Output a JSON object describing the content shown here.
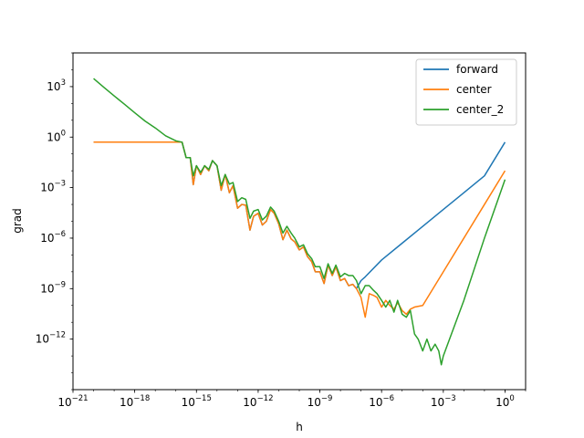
{
  "chart_data": {
    "type": "line",
    "xlabel": "h",
    "ylabel": "grad",
    "x_scale": "log",
    "y_scale": "log",
    "xlim": [
      1e-21,
      10
    ],
    "ylim": [
      1e-15,
      100000.0
    ],
    "x_ticks": [
      {
        "exp": "-21",
        "value": 1e-21
      },
      {
        "exp": "-18",
        "value": 1e-18
      },
      {
        "exp": "-15",
        "value": 1e-15
      },
      {
        "exp": "-12",
        "value": 1e-12
      },
      {
        "exp": "-9",
        "value": 1e-09
      },
      {
        "exp": "-6",
        "value": 1e-06
      },
      {
        "exp": "-3",
        "value": 0.001
      },
      {
        "exp": "0",
        "value": 1
      }
    ],
    "y_ticks": [
      {
        "exp": "-12",
        "value": 1e-12
      },
      {
        "exp": "-9",
        "value": 1e-09
      },
      {
        "exp": "-6",
        "value": 1e-06
      },
      {
        "exp": "-3",
        "value": 0.001
      },
      {
        "exp": "0",
        "value": 1
      },
      {
        "exp": "3",
        "value": 1000
      }
    ],
    "grid": false,
    "legend_position": "upper right",
    "series": [
      {
        "name": "forward",
        "color": "#1f77b4",
        "points": [
          [
            1e-20,
            0.5
          ],
          [
            3.16e-20,
            0.5
          ],
          [
            1e-19,
            0.5
          ],
          [
            3.16e-19,
            0.5
          ],
          [
            1e-18,
            0.5
          ],
          [
            3.16e-18,
            0.5
          ],
          [
            1e-17,
            0.5
          ],
          [
            3.16e-17,
            0.5
          ],
          [
            1e-16,
            0.5
          ],
          [
            2e-16,
            0.5
          ],
          [
            3.16e-16,
            0.06
          ],
          [
            5e-16,
            0.06
          ],
          [
            7e-16,
            0.0015
          ],
          [
            1e-15,
            0.02
          ],
          [
            1.6e-15,
            0.006
          ],
          [
            2.5e-15,
            0.02
          ],
          [
            4e-15,
            0.01
          ],
          [
            6e-15,
            0.04
          ],
          [
            1e-14,
            0.02
          ],
          [
            1.6e-14,
            0.0007
          ],
          [
            2.5e-14,
            0.006
          ],
          [
            4e-14,
            0.0005
          ],
          [
            6e-14,
            0.0013
          ],
          [
            1e-13,
            6e-05
          ],
          [
            1.6e-13,
            0.0001
          ],
          [
            2.5e-13,
            9e-05
          ],
          [
            4e-13,
            3e-06
          ],
          [
            6e-13,
            2e-05
          ],
          [
            1e-12,
            3e-05
          ],
          [
            1.6e-12,
            6e-06
          ],
          [
            2.5e-12,
            1e-05
          ],
          [
            4e-12,
            5e-05
          ],
          [
            6e-12,
            3e-05
          ],
          [
            1e-11,
            7e-06
          ],
          [
            1.6e-11,
            8e-07
          ],
          [
            2.5e-11,
            3e-06
          ],
          [
            4e-11,
            9e-07
          ],
          [
            6e-11,
            6e-07
          ],
          [
            1e-10,
            2e-07
          ],
          [
            1.6e-10,
            3e-07
          ],
          [
            2.5e-10,
            8e-08
          ],
          [
            4e-10,
            4e-08
          ],
          [
            6e-10,
            1e-08
          ],
          [
            1e-09,
            1e-08
          ],
          [
            1.6e-09,
            2e-09
          ],
          [
            2.5e-09,
            2.5e-08
          ],
          [
            4e-09,
            6e-09
          ],
          [
            6e-09,
            2e-08
          ],
          [
            1e-08,
            3e-09
          ],
          [
            1.6e-08,
            4e-09
          ],
          [
            2.5e-08,
            1.5e-09
          ],
          [
            4e-08,
            1.8e-09
          ],
          [
            6e-08,
            1e-09
          ],
          [
            1e-07,
            3e-09
          ],
          [
            1.6e-07,
            5e-09
          ],
          [
            1e-06,
            5e-08
          ],
          [
            1e-05,
            5e-07
          ],
          [
            0.0001,
            5e-06
          ],
          [
            0.001,
            5e-05
          ],
          [
            0.01,
            0.0005
          ],
          [
            0.1,
            0.005
          ],
          [
            1,
            0.5
          ]
        ]
      },
      {
        "name": "center",
        "color": "#ff7f0e",
        "points": [
          [
            1e-20,
            0.5
          ],
          [
            3.16e-20,
            0.5
          ],
          [
            1e-19,
            0.5
          ],
          [
            3.16e-19,
            0.5
          ],
          [
            1e-18,
            0.5
          ],
          [
            3.16e-18,
            0.5
          ],
          [
            1e-17,
            0.5
          ],
          [
            3.16e-17,
            0.5
          ],
          [
            1e-16,
            0.5
          ],
          [
            2e-16,
            0.5
          ],
          [
            3.16e-16,
            0.06
          ],
          [
            5e-16,
            0.06
          ],
          [
            7e-16,
            0.0015
          ],
          [
            1e-15,
            0.02
          ],
          [
            1.6e-15,
            0.006
          ],
          [
            2.5e-15,
            0.02
          ],
          [
            4e-15,
            0.01
          ],
          [
            6e-15,
            0.04
          ],
          [
            1e-14,
            0.02
          ],
          [
            1.6e-14,
            0.0007
          ],
          [
            2.5e-14,
            0.006
          ],
          [
            4e-14,
            0.0005
          ],
          [
            6e-14,
            0.0013
          ],
          [
            1e-13,
            6e-05
          ],
          [
            1.6e-13,
            0.0001
          ],
          [
            2.5e-13,
            9e-05
          ],
          [
            4e-13,
            3e-06
          ],
          [
            6e-13,
            2e-05
          ],
          [
            1e-12,
            3e-05
          ],
          [
            1.6e-12,
            6e-06
          ],
          [
            2.5e-12,
            1e-05
          ],
          [
            4e-12,
            5e-05
          ],
          [
            6e-12,
            3e-05
          ],
          [
            1e-11,
            7e-06
          ],
          [
            1.6e-11,
            8e-07
          ],
          [
            2.5e-11,
            3e-06
          ],
          [
            4e-11,
            9e-07
          ],
          [
            6e-11,
            6e-07
          ],
          [
            1e-10,
            2e-07
          ],
          [
            1.6e-10,
            3e-07
          ],
          [
            2.5e-10,
            8e-08
          ],
          [
            4e-10,
            4e-08
          ],
          [
            6e-10,
            1e-08
          ],
          [
            1e-09,
            1e-08
          ],
          [
            1.6e-09,
            2e-09
          ],
          [
            2.5e-09,
            2.5e-08
          ],
          [
            4e-09,
            6e-09
          ],
          [
            6e-09,
            2e-08
          ],
          [
            1e-08,
            3e-09
          ],
          [
            1.6e-08,
            4e-09
          ],
          [
            2.5e-08,
            1.5e-09
          ],
          [
            4e-08,
            1.8e-09
          ],
          [
            6e-08,
            1e-09
          ],
          [
            1e-07,
            3e-10
          ],
          [
            1.6e-07,
            2e-11
          ],
          [
            2.5e-07,
            5e-10
          ],
          [
            4e-07,
            4e-10
          ],
          [
            6e-07,
            3e-10
          ],
          [
            1e-06,
            8e-11
          ],
          [
            1.6e-06,
            2e-10
          ],
          [
            2.5e-06,
            1e-10
          ],
          [
            4e-06,
            6e-11
          ],
          [
            6e-06,
            1.5e-10
          ],
          [
            1e-05,
            5e-11
          ],
          [
            1.6e-05,
            3e-11
          ],
          [
            2.5e-05,
            6e-11
          ],
          [
            4e-05,
            8e-11
          ],
          [
            0.0001,
            1e-10
          ],
          [
            0.001,
            1e-08
          ],
          [
            0.01,
            1e-06
          ],
          [
            0.1,
            0.0001
          ],
          [
            1,
            0.01
          ]
        ]
      },
      {
        "name": "center_2",
        "color": "#2ca02c",
        "points": [
          [
            1e-20,
            3000
          ],
          [
            3.16e-20,
            900
          ],
          [
            1e-19,
            280
          ],
          [
            3.16e-19,
            90
          ],
          [
            1e-18,
            28
          ],
          [
            3.16e-18,
            9
          ],
          [
            1e-17,
            3.5
          ],
          [
            3.16e-17,
            1.2
          ],
          [
            1e-16,
            0.6
          ],
          [
            2e-16,
            0.5
          ],
          [
            3.16e-16,
            0.06
          ],
          [
            5e-16,
            0.06
          ],
          [
            7e-16,
            0.005
          ],
          [
            1e-15,
            0.02
          ],
          [
            1.6e-15,
            0.008
          ],
          [
            2.5e-15,
            0.02
          ],
          [
            4e-15,
            0.012
          ],
          [
            6e-15,
            0.04
          ],
          [
            1e-14,
            0.02
          ],
          [
            1.6e-14,
            0.0013
          ],
          [
            2.5e-14,
            0.006
          ],
          [
            4e-14,
            0.0016
          ],
          [
            6e-14,
            0.002
          ],
          [
            1e-13,
            0.00015
          ],
          [
            1.6e-13,
            0.00025
          ],
          [
            2.5e-13,
            0.0002
          ],
          [
            4e-13,
            1.5e-05
          ],
          [
            6e-13,
            4e-05
          ],
          [
            1e-12,
            5e-05
          ],
          [
            1.6e-12,
            1.2e-05
          ],
          [
            2.5e-12,
            2e-05
          ],
          [
            4e-12,
            7e-05
          ],
          [
            6e-12,
            4e-05
          ],
          [
            1e-11,
            1e-05
          ],
          [
            1.6e-11,
            2e-06
          ],
          [
            2.5e-11,
            5e-06
          ],
          [
            4e-11,
            2e-06
          ],
          [
            6e-11,
            1e-06
          ],
          [
            1e-10,
            3e-07
          ],
          [
            1.6e-10,
            4e-07
          ],
          [
            2.5e-10,
            1.2e-07
          ],
          [
            4e-10,
            6e-08
          ],
          [
            6e-10,
            2e-08
          ],
          [
            1e-09,
            2e-08
          ],
          [
            1.6e-09,
            4e-09
          ],
          [
            2.5e-09,
            3e-08
          ],
          [
            4e-09,
            8e-09
          ],
          [
            6e-09,
            2.5e-08
          ],
          [
            1e-08,
            5e-09
          ],
          [
            1.6e-08,
            8e-09
          ],
          [
            2.5e-08,
            6e-09
          ],
          [
            4e-08,
            6e-09
          ],
          [
            6e-08,
            3e-09
          ],
          [
            1e-07,
            5e-10
          ],
          [
            1.6e-07,
            1.5e-09
          ],
          [
            2.5e-07,
            1.5e-09
          ],
          [
            4e-07,
            8e-10
          ],
          [
            6e-07,
            5e-10
          ],
          [
            1e-06,
            2e-10
          ],
          [
            1.6e-06,
            8e-11
          ],
          [
            2.5e-06,
            2e-10
          ],
          [
            4e-06,
            4e-11
          ],
          [
            6e-06,
            2e-10
          ],
          [
            1e-05,
            3e-11
          ],
          [
            1.6e-05,
            2e-11
          ],
          [
            2.5e-05,
            5e-11
          ],
          [
            4e-05,
            2e-12
          ],
          [
            6e-05,
            1e-12
          ],
          [
            0.0001,
            2e-13
          ],
          [
            0.00016,
            1e-12
          ],
          [
            0.00025,
            2e-13
          ],
          [
            0.0004,
            5e-13
          ],
          [
            0.0006,
            2e-13
          ],
          [
            0.0008,
            3e-14
          ],
          [
            0.001,
            1e-13
          ],
          [
            0.01,
            2e-10
          ],
          [
            0.1,
            1e-06
          ],
          [
            1,
            0.003
          ]
        ]
      }
    ]
  }
}
